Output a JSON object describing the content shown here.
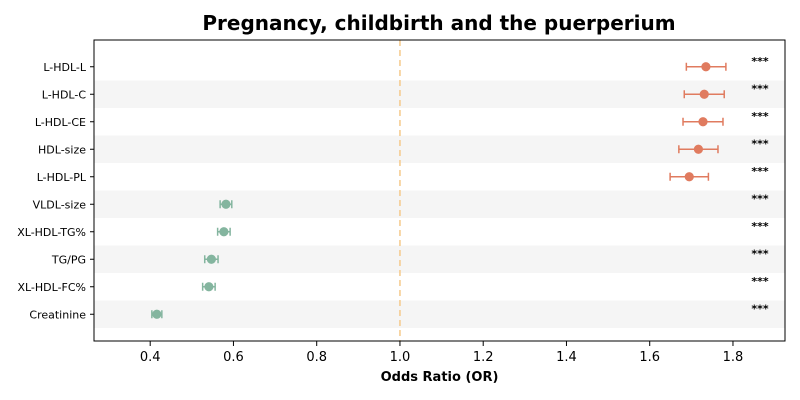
{
  "chart_data": {
    "type": "scatter",
    "title": "Pregnancy, childbirth and the puerperium",
    "xlabel": "Odds Ratio (OR)",
    "ylabel": "",
    "xlim": [
      0.265,
      1.925
    ],
    "xticks": [
      0.4,
      0.6,
      0.8,
      1.0,
      1.2,
      1.4,
      1.6,
      1.8
    ],
    "xtick_labels": [
      "0.4",
      "0.6",
      "0.8",
      "1.0",
      "1.2",
      "1.4",
      "1.6",
      "1.8"
    ],
    "reference_line": 1.0,
    "grid": false,
    "alternating_row_shading": true,
    "colors": {
      "risk": "#e07b5f",
      "protective": "#84b59f",
      "reference": "#f5c98a",
      "row_shade": "#f5f5f5"
    },
    "points": [
      {
        "label": "L-HDL-L",
        "or": 1.735,
        "ci_low": 1.688,
        "ci_high": 1.783,
        "sig": "***",
        "group": "risk"
      },
      {
        "label": "L-HDL-C",
        "or": 1.731,
        "ci_low": 1.683,
        "ci_high": 1.779,
        "sig": "***",
        "group": "risk"
      },
      {
        "label": "L-HDL-CE",
        "or": 1.728,
        "ci_low": 1.68,
        "ci_high": 1.776,
        "sig": "***",
        "group": "risk"
      },
      {
        "label": "HDL-size",
        "or": 1.717,
        "ci_low": 1.67,
        "ci_high": 1.764,
        "sig": "***",
        "group": "risk"
      },
      {
        "label": "L-HDL-PL",
        "or": 1.695,
        "ci_low": 1.649,
        "ci_high": 1.741,
        "sig": "***",
        "group": "risk"
      },
      {
        "label": "VLDL-size",
        "or": 0.582,
        "ci_low": 0.568,
        "ci_high": 0.596,
        "sig": "***",
        "group": "protective"
      },
      {
        "label": "XL-HDL-TG%",
        "or": 0.577,
        "ci_low": 0.562,
        "ci_high": 0.592,
        "sig": "***",
        "group": "protective"
      },
      {
        "label": "TG/PG",
        "or": 0.547,
        "ci_low": 0.531,
        "ci_high": 0.563,
        "sig": "***",
        "group": "protective"
      },
      {
        "label": "XL-HDL-FC%",
        "or": 0.541,
        "ci_low": 0.526,
        "ci_high": 0.556,
        "sig": "***",
        "group": "protective"
      },
      {
        "label": "Creatinine",
        "or": 0.416,
        "ci_low": 0.404,
        "ci_high": 0.428,
        "sig": "***",
        "group": "protective"
      }
    ]
  }
}
